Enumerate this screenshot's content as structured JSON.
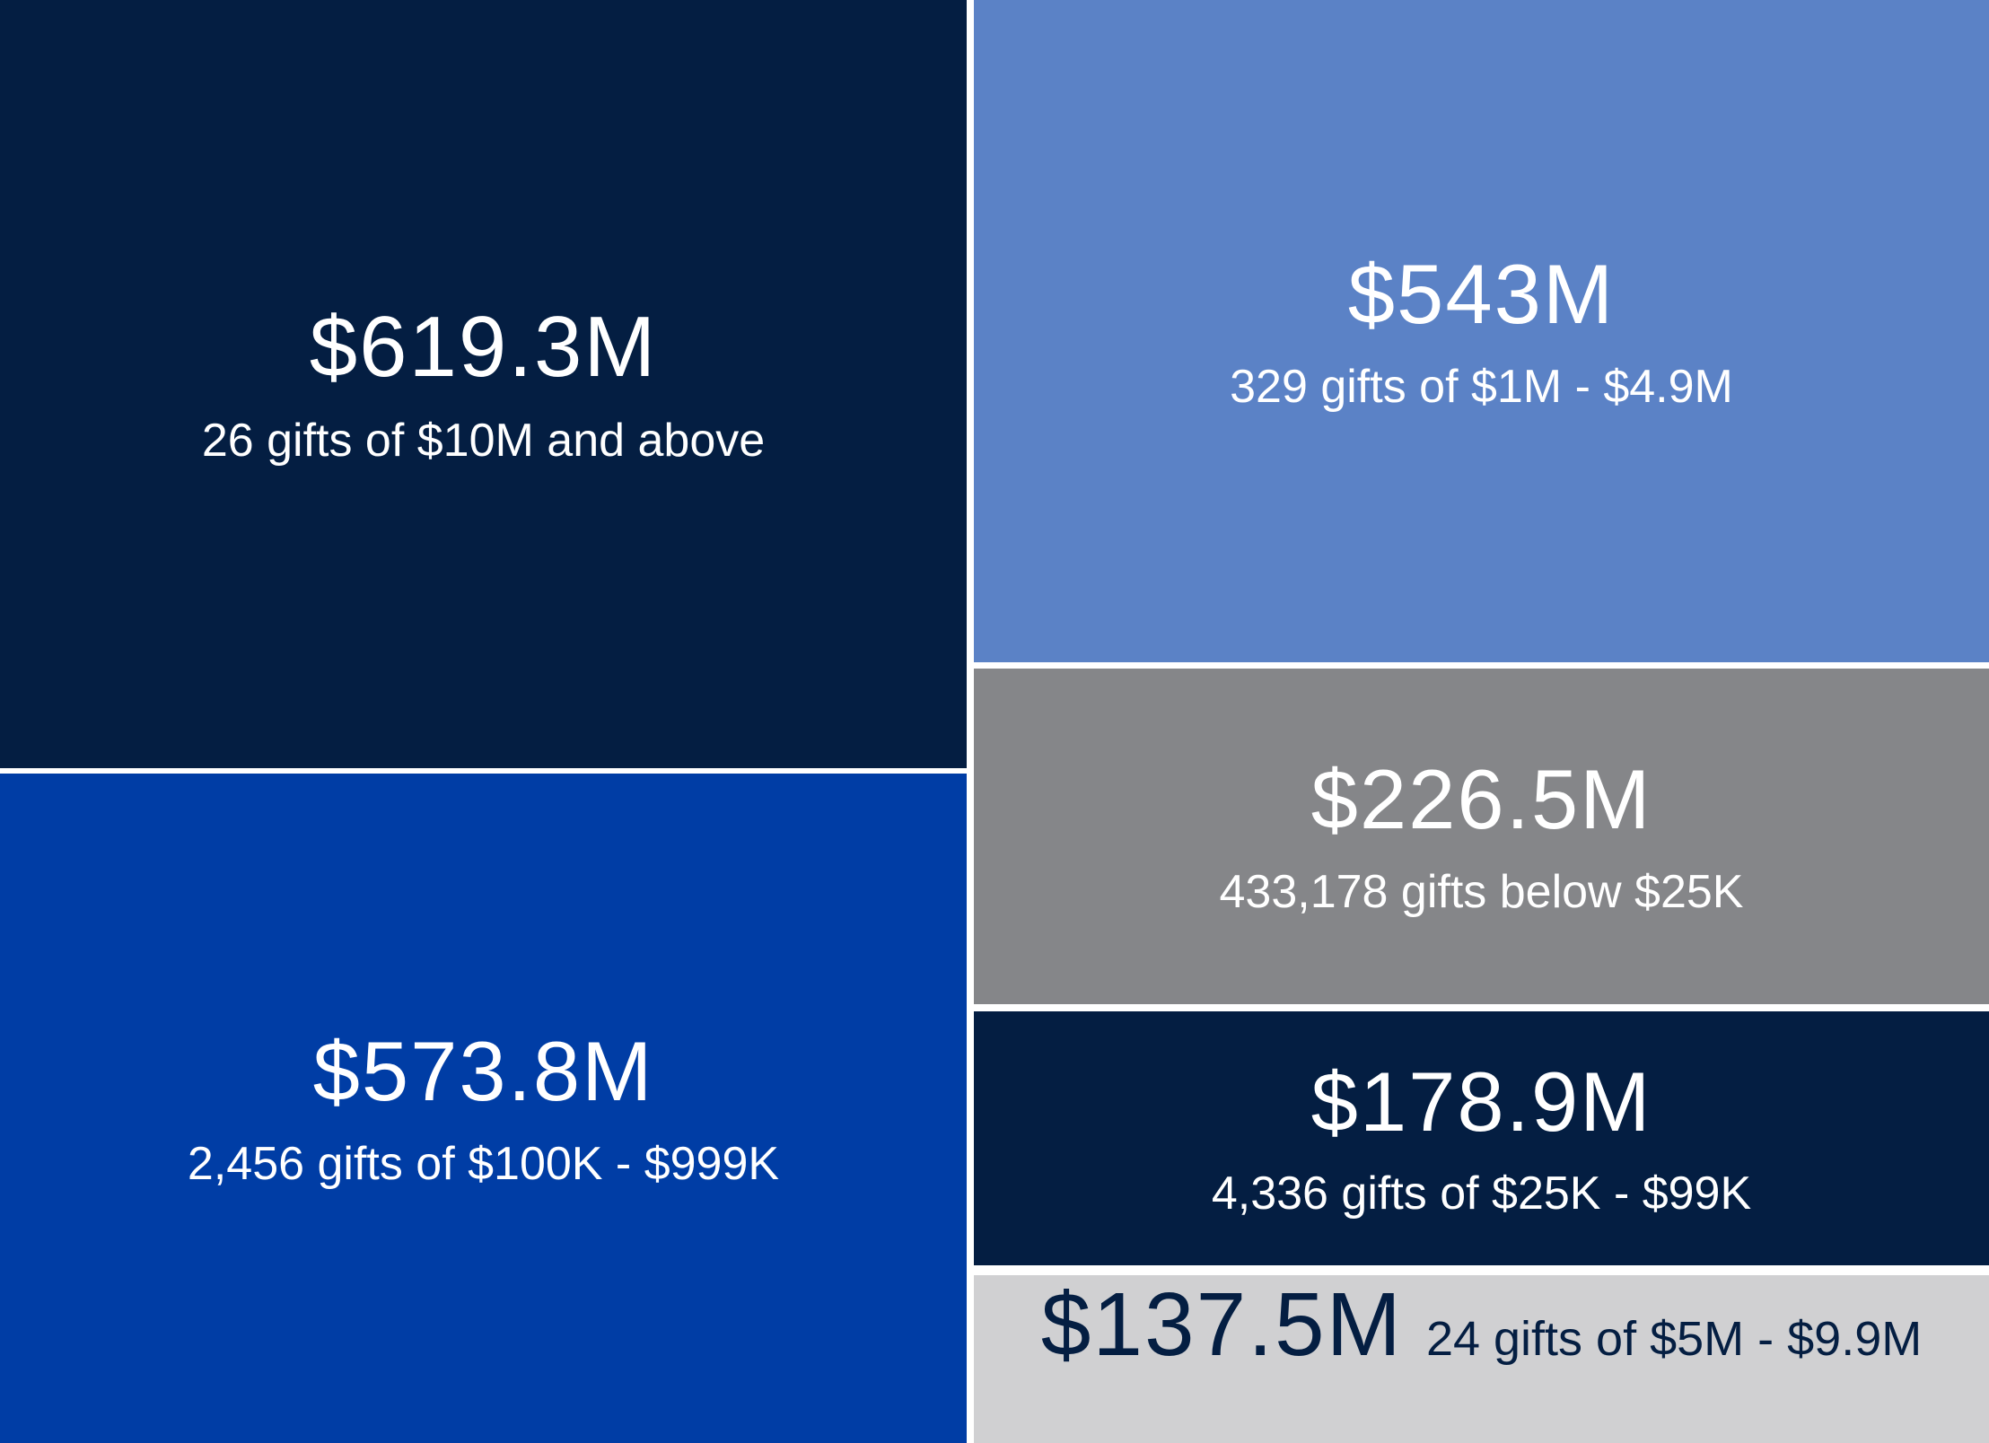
{
  "chart_data": {
    "type": "treemap",
    "title": "",
    "items": [
      {
        "value_label": "$619.3M",
        "value": 619.3,
        "description": "26 gifts of $10M and above",
        "color": "#041e42",
        "text_color": "#ffffff"
      },
      {
        "value_label": "$573.8M",
        "value": 573.8,
        "description": "2,456 gifts of $100K - $999K",
        "color": "#003da5",
        "text_color": "#ffffff"
      },
      {
        "value_label": "$543M",
        "value": 543,
        "description": "329 gifts of $1M - $4.9M",
        "color": "#5b82c6",
        "text_color": "#ffffff"
      },
      {
        "value_label": "$226.5M",
        "value": 226.5,
        "description": "433,178 gifts below $25K",
        "color": "#858689",
        "text_color": "#ffffff"
      },
      {
        "value_label": "$178.9M",
        "value": 178.9,
        "description": "4,336 gifts of $25K - $99K",
        "color": "#041e42",
        "text_color": "#ffffff"
      },
      {
        "value_label": "$137.5M",
        "value": 137.5,
        "description": "24 gifts of $5M - $9.9M",
        "color": "#d0d0d2",
        "text_color": "#041e42"
      }
    ]
  }
}
